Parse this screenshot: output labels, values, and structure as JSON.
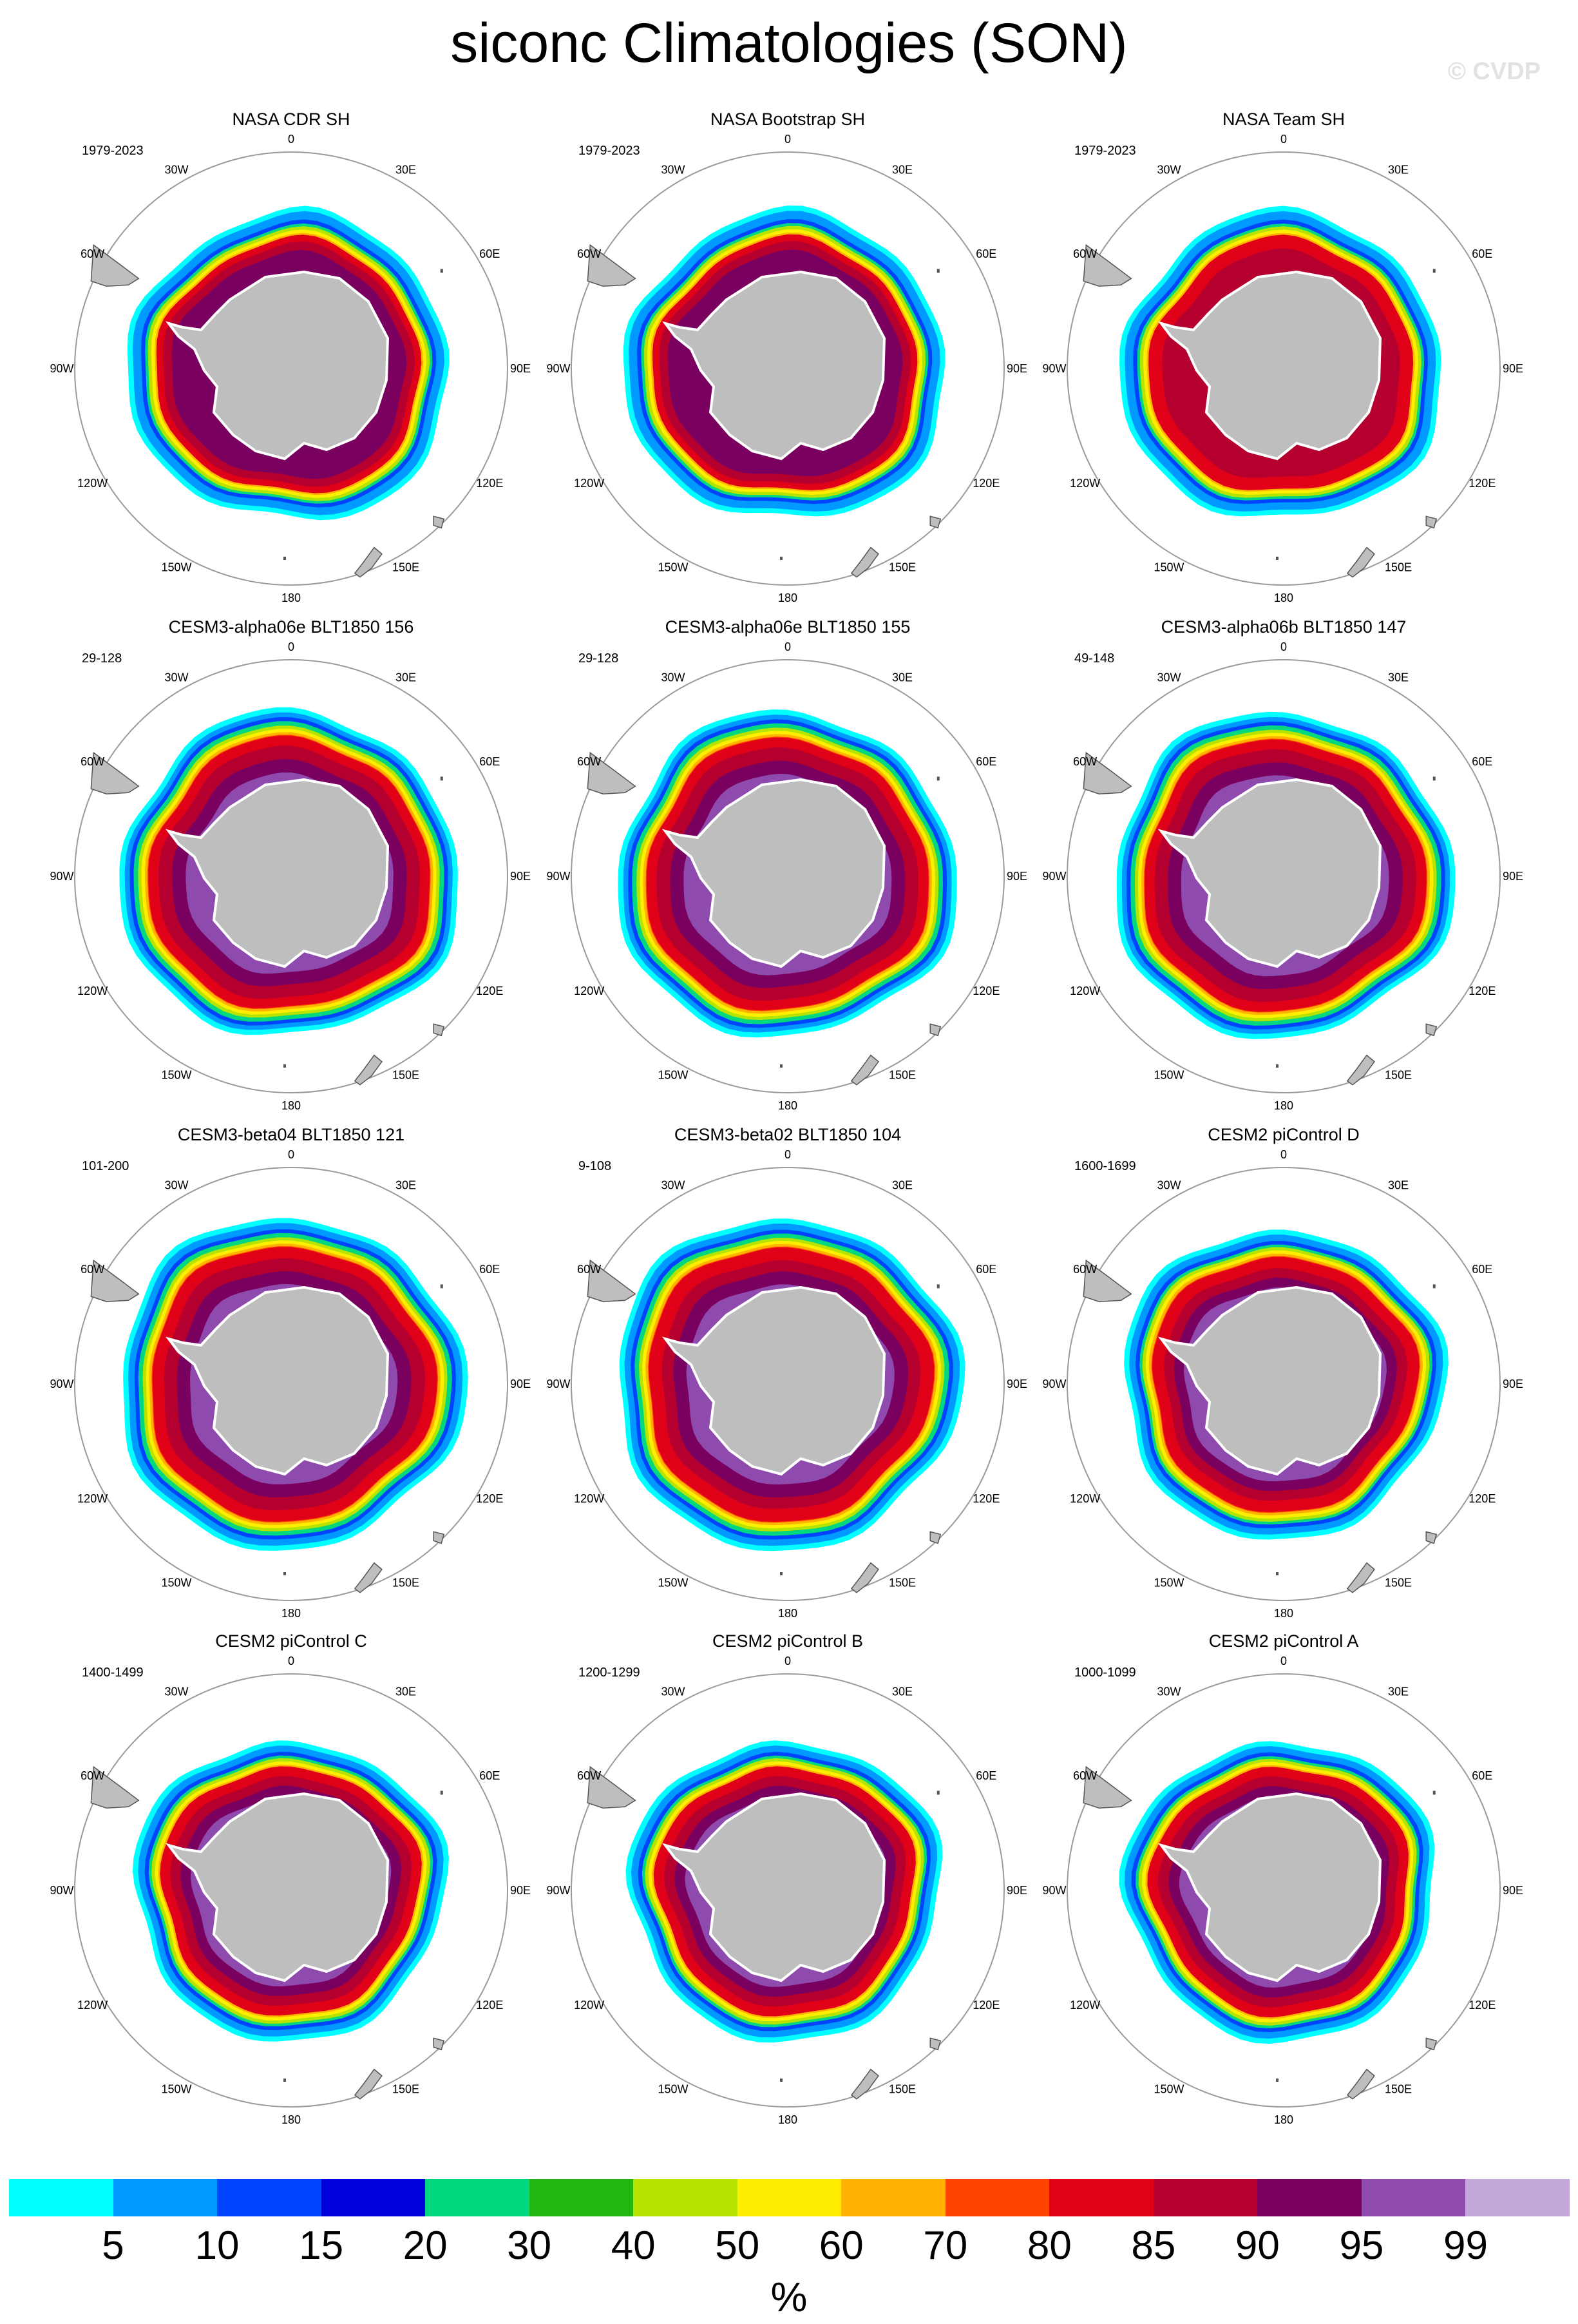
{
  "figure": {
    "title": "siconc Climatologies (SON)",
    "watermark": "© CVDP"
  },
  "colors": {
    "land": "#bebebe",
    "coast": "#555555",
    "ring": "#9a9a9a"
  },
  "lon_labels": [
    "0",
    "30E",
    "60E",
    "90E",
    "120E",
    "150E",
    "180",
    "150W",
    "120W",
    "90W",
    "60W",
    "30W"
  ],
  "panels": [
    {
      "title": "NASA CDR SH",
      "period": "1979-2023",
      "levels": {
        "c5": 96,
        "c20": 88,
        "c50": 84,
        "c85": 79,
        "c90": 75,
        "c95": 70,
        "c99": 0
      }
    },
    {
      "title": "NASA Bootstrap SH",
      "period": "1979-2023",
      "levels": {
        "c5": 96,
        "c20": 88,
        "c50": 84,
        "c85": 79,
        "c90": 75,
        "c95": 70,
        "c99": 0
      }
    },
    {
      "title": "NASA Team SH",
      "period": "1979-2023",
      "levels": {
        "c5": 96,
        "c20": 88,
        "c50": 84,
        "c85": 79,
        "c90": 71,
        "c95": 0,
        "c99": 0
      }
    },
    {
      "title": "CESM3-alpha06e BLT1850 156",
      "period": "29-128",
      "levels": {
        "c5": 101,
        "c20": 95,
        "c50": 90,
        "c85": 84,
        "c90": 78,
        "c95": 70,
        "c99": 62
      }
    },
    {
      "title": "CESM3-alpha06e BLT1850 155",
      "period": "29-128",
      "levels": {
        "c5": 101,
        "c20": 95,
        "c50": 90,
        "c85": 84,
        "c90": 78,
        "c95": 70,
        "c99": 62
      }
    },
    {
      "title": "CESM3-alpha06b BLT1850 147",
      "period": "49-148",
      "levels": {
        "c5": 101,
        "c20": 95,
        "c50": 90,
        "c85": 84,
        "c90": 78,
        "c95": 70,
        "c99": 62
      }
    },
    {
      "title": "CESM3-beta04 BLT1850 121",
      "period": "101-200",
      "levels": {
        "c5": 103,
        "c20": 96,
        "c50": 91,
        "c85": 85,
        "c90": 78,
        "c95": 70,
        "c99": 62
      }
    },
    {
      "title": "CESM3-beta02 BLT1850 104",
      "period": "9-108",
      "levels": {
        "c5": 103,
        "c20": 96,
        "c50": 91,
        "c85": 85,
        "c90": 77,
        "c95": 70,
        "c99": 62
      }
    },
    {
      "title": "CESM2 piControl D",
      "period": "1600-1699",
      "levels": {
        "c5": 96,
        "c20": 89,
        "c50": 85,
        "c85": 79,
        "c90": 72,
        "c95": 66,
        "c99": 60
      }
    },
    {
      "title": "CESM2 piControl C",
      "period": "1400-1499",
      "levels": {
        "c5": 93,
        "c20": 86,
        "c50": 82,
        "c85": 77,
        "c90": 71,
        "c95": 65,
        "c99": 59
      }
    },
    {
      "title": "CESM2 piControl B",
      "period": "1200-1299",
      "levels": {
        "c5": 93,
        "c20": 86,
        "c50": 82,
        "c85": 77,
        "c90": 71,
        "c95": 65,
        "c99": 59
      }
    },
    {
      "title": "CESM2 piControl A",
      "period": "1000-1099",
      "levels": {
        "c5": 93,
        "c20": 86,
        "c50": 82,
        "c85": 77,
        "c90": 71,
        "c95": 65,
        "c99": 59
      }
    }
  ],
  "colorbar": {
    "colors": [
      "#00ffff",
      "#0099ff",
      "#0044ff",
      "#0000dd",
      "#00d880",
      "#22b811",
      "#b6e400",
      "#ffee00",
      "#ffb300",
      "#ff4400",
      "#e00018",
      "#b5002f",
      "#7a0060",
      "#8f4aad",
      "#c4a8d9"
    ],
    "tick_labels": [
      "5",
      "10",
      "15",
      "20",
      "30",
      "40",
      "50",
      "60",
      "70",
      "80",
      "85",
      "90",
      "95",
      "99"
    ],
    "units": "%"
  }
}
